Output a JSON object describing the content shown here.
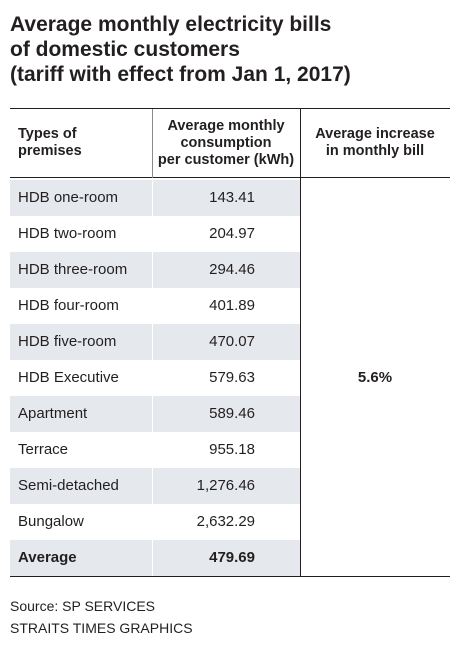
{
  "title": {
    "line1": "Average monthly electricity bills",
    "line2": "of domestic customers",
    "line3": "(tariff with effect from Jan 1, 2017)"
  },
  "table": {
    "headers": {
      "col1": [
        "Types of",
        "premises"
      ],
      "col2": [
        "Average monthly",
        "consumption",
        "per customer (kWh)"
      ],
      "col3": [
        "Average increase",
        "in monthly bill"
      ]
    },
    "rows": [
      {
        "premise": "HDB one-room",
        "consumption": "143.41"
      },
      {
        "premise": "HDB two-room",
        "consumption": "204.97"
      },
      {
        "premise": "HDB three-room",
        "consumption": "294.46"
      },
      {
        "premise": "HDB four-room",
        "consumption": "401.89"
      },
      {
        "premise": "HDB five-room",
        "consumption": "470.07"
      },
      {
        "premise": "HDB Executive",
        "consumption": "579.63"
      },
      {
        "premise": "Apartment",
        "consumption": "589.46"
      },
      {
        "premise": "Terrace",
        "consumption": "955.18"
      },
      {
        "premise": "Semi-detached",
        "consumption": "1,276.46"
      },
      {
        "premise": "Bungalow",
        "consumption": "2,632.29"
      }
    ],
    "average": {
      "premise": "Average",
      "consumption": "479.69"
    },
    "increase": "5.6%"
  },
  "footer": {
    "source": "Source: SP SERVICES",
    "credit": "STRAITS TIMES GRAPHICS"
  },
  "colors": {
    "text": "#231f20",
    "shaded_row": "#e5e8ec",
    "background": "#ffffff"
  }
}
